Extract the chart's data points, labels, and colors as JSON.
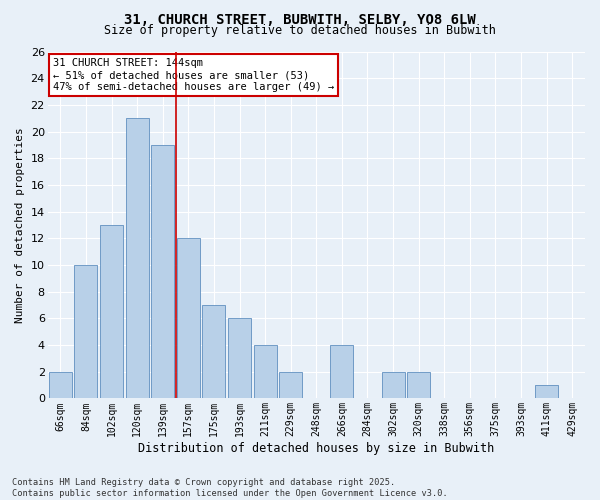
{
  "title": "31, CHURCH STREET, BUBWITH, SELBY, YO8 6LW",
  "subtitle": "Size of property relative to detached houses in Bubwith",
  "xlabel": "Distribution of detached houses by size in Bubwith",
  "ylabel": "Number of detached properties",
  "bar_color": "#b8d0e8",
  "bar_edge_color": "#6090c0",
  "background_color": "#e8f0f8",
  "grid_color": "#ffffff",
  "categories": [
    "66sqm",
    "84sqm",
    "102sqm",
    "120sqm",
    "139sqm",
    "157sqm",
    "175sqm",
    "193sqm",
    "211sqm",
    "229sqm",
    "248sqm",
    "266sqm",
    "284sqm",
    "302sqm",
    "320sqm",
    "338sqm",
    "356sqm",
    "375sqm",
    "393sqm",
    "411sqm",
    "429sqm"
  ],
  "values": [
    2,
    10,
    13,
    21,
    19,
    12,
    7,
    6,
    4,
    2,
    0,
    4,
    0,
    2,
    2,
    0,
    0,
    0,
    0,
    1,
    0
  ],
  "ylim": [
    0,
    26
  ],
  "yticks": [
    0,
    2,
    4,
    6,
    8,
    10,
    12,
    14,
    16,
    18,
    20,
    22,
    24,
    26
  ],
  "vline_x": 4.5,
  "vline_color": "#cc0000",
  "annotation_text": "31 CHURCH STREET: 144sqm\n← 51% of detached houses are smaller (53)\n47% of semi-detached houses are larger (49) →",
  "annotation_box_color": "#ffffff",
  "annotation_box_edge": "#cc0000",
  "footer_line1": "Contains HM Land Registry data © Crown copyright and database right 2025.",
  "footer_line2": "Contains public sector information licensed under the Open Government Licence v3.0."
}
